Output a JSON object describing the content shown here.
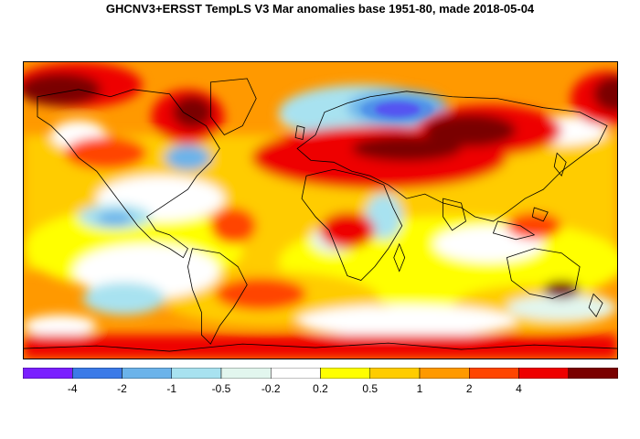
{
  "title": "GHCNV3+ERSST TempLS V3 Mar anomalies base 1951-80, made 2018-05-04",
  "legend": {
    "colors": [
      "#7a1fff",
      "#3b7ae8",
      "#6bb3ea",
      "#a8e2f0",
      "#e2f6ee",
      "#ffffff",
      "#ffff00",
      "#ffcc00",
      "#ff9900",
      "#ff4500",
      "#ee0000",
      "#7a0000"
    ],
    "labels": [
      "-4",
      "-2",
      "-1",
      "-0.5",
      "-0.2",
      "0.2",
      "0.5",
      "1",
      "2",
      "4"
    ]
  },
  "palette": {
    "dark_red": "#7a0000",
    "red": "#ee0000",
    "orange_red": "#ff4500",
    "orange": "#ff9900",
    "amber": "#ffcc00",
    "yellow": "#ffff00",
    "white": "#ffffff",
    "pale_cyan": "#e2f6ee",
    "light_cyan": "#a8e2f0",
    "sky_blue": "#6bb3ea",
    "blue": "#3b7ae8",
    "violet": "#7a1fff"
  }
}
